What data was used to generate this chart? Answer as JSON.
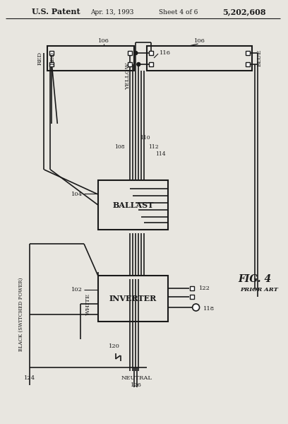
{
  "bg_color": "#e8e6e0",
  "lc": "#1a1a1a",
  "title_left": "U.S. Patent",
  "title_center": "Apr. 13, 1993",
  "title_sheet": "Sheet 4 of 6",
  "title_right": "5,202,608",
  "fig_label": "FIG. 4",
  "fig_sublabel": "PRIOR ART"
}
